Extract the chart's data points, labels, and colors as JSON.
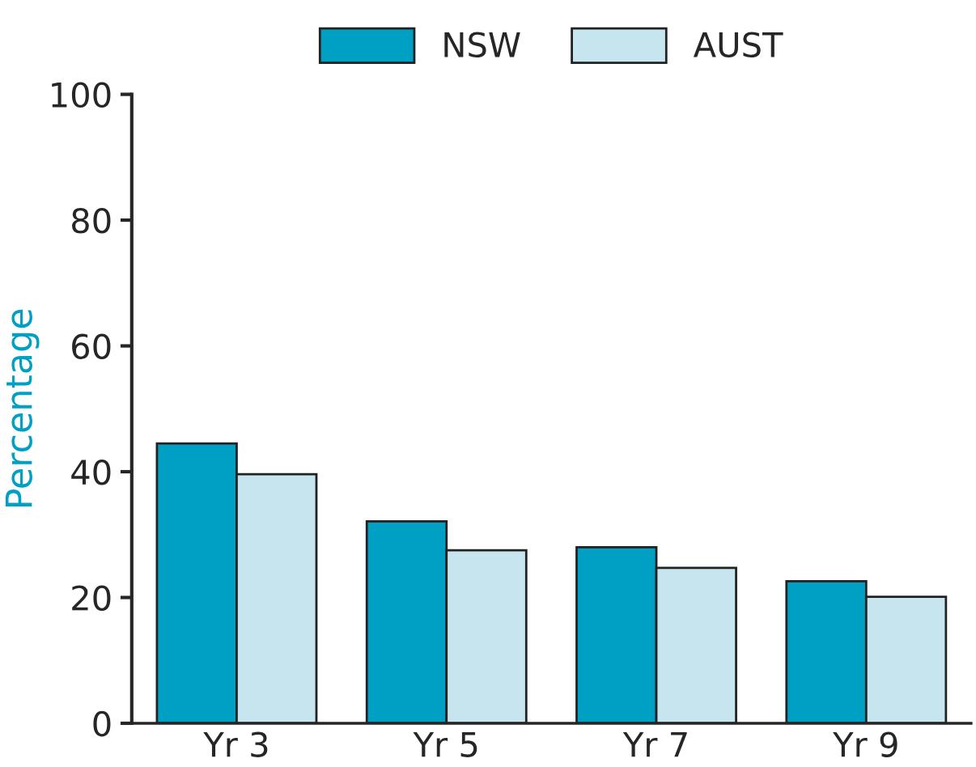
{
  "chart_data": {
    "type": "bar",
    "ylabel": "Percentage",
    "categories": [
      "Yr 3",
      "Yr 5",
      "Yr 7",
      "Yr 9"
    ],
    "series": [
      {
        "name": "NSW",
        "color": "#00a0c4",
        "values": [
          44.5,
          32.1,
          28.0,
          22.6
        ]
      },
      {
        "name": "AUST",
        "color": "#c6e5ee",
        "values": [
          39.6,
          27.5,
          24.7,
          20.1
        ]
      }
    ],
    "ylim": [
      0,
      100
    ],
    "yticks": [
      0,
      20,
      40,
      60,
      80,
      100
    ],
    "grid": false,
    "legend": "top"
  }
}
